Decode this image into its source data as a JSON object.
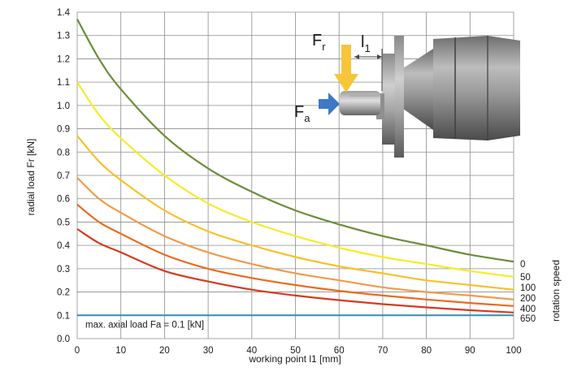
{
  "chart_data": {
    "type": "line",
    "title": "",
    "xlabel": "working point l1 [mm]",
    "ylabel": "radial load Fr [kN]",
    "right_label": "rotation speed",
    "xlim": [
      0,
      100
    ],
    "ylim": [
      0,
      1.4
    ],
    "xticks": [
      "0",
      "10",
      "20",
      "30",
      "40",
      "50",
      "60",
      "70",
      "80",
      "90",
      "100"
    ],
    "yticks": [
      "0.0",
      "0.1",
      "0.2",
      "0.3",
      "0.4",
      "0.5",
      "0.6",
      "0.7",
      "0.8",
      "0.9",
      "1.0",
      "1.1",
      "1.2",
      "1.3",
      "1.4"
    ],
    "grid": true,
    "x": [
      0,
      5,
      10,
      20,
      30,
      40,
      50,
      60,
      70,
      80,
      90,
      100
    ],
    "series": [
      {
        "name": "0",
        "color": "#6b8e3a",
        "values": [
          1.37,
          1.2,
          1.07,
          0.87,
          0.73,
          0.63,
          0.55,
          0.49,
          0.44,
          0.4,
          0.36,
          0.33
        ]
      },
      {
        "name": "50",
        "color": "#f5ec2a",
        "values": [
          1.1,
          0.96,
          0.86,
          0.7,
          0.58,
          0.5,
          0.44,
          0.39,
          0.35,
          0.32,
          0.29,
          0.265
        ]
      },
      {
        "name": "100",
        "color": "#f9c02a",
        "values": [
          0.87,
          0.76,
          0.68,
          0.55,
          0.46,
          0.4,
          0.35,
          0.31,
          0.28,
          0.25,
          0.23,
          0.21
        ]
      },
      {
        "name": "200",
        "color": "#f29a4a",
        "values": [
          0.69,
          0.6,
          0.54,
          0.44,
          0.37,
          0.32,
          0.28,
          0.25,
          0.22,
          0.2,
          0.185,
          0.168
        ]
      },
      {
        "name": "400",
        "color": "#ec6a1c",
        "values": [
          0.575,
          0.5,
          0.45,
          0.36,
          0.3,
          0.26,
          0.23,
          0.205,
          0.185,
          0.168,
          0.153,
          0.14
        ]
      },
      {
        "name": "650",
        "color": "#d63a1e",
        "values": [
          0.47,
          0.41,
          0.37,
          0.29,
          0.245,
          0.21,
          0.185,
          0.165,
          0.148,
          0.134,
          0.122,
          0.112
        ]
      }
    ],
    "axial_load": {
      "value": 0.1,
      "color": "#2f8fb0",
      "label": "max. axial load Fa = 0.1 [kN]"
    },
    "diagram_labels": {
      "radial_force": "F",
      "radial_sub": "r",
      "axial_force": "F",
      "axial_sub": "a",
      "distance": "l",
      "distance_sub": "1"
    }
  }
}
